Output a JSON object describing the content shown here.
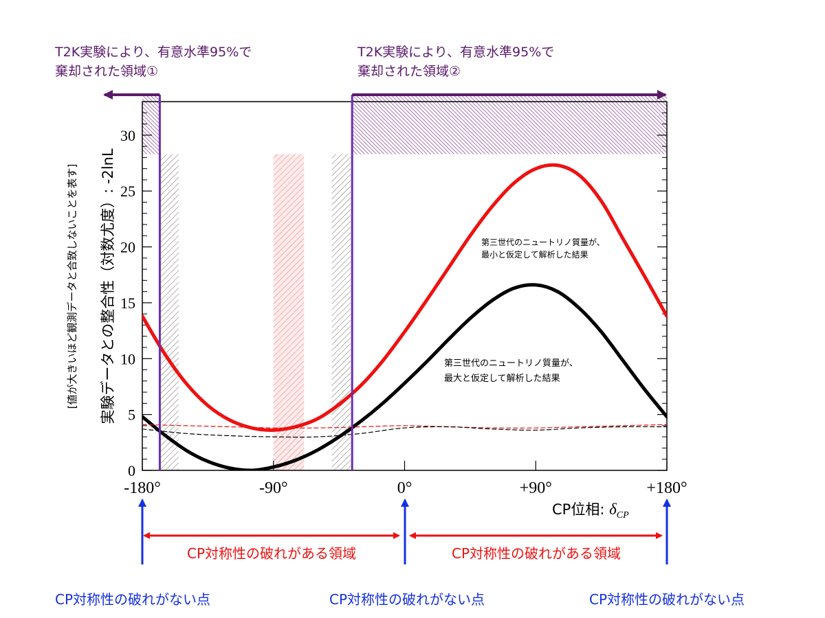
{
  "excluded": {
    "region1": {
      "line1": "T2K実験により、有意水準95%で",
      "line2": "棄却された領域①"
    },
    "region2": {
      "line1": "T2K実験により、有意水準95%で",
      "line2": "棄却された領域②"
    }
  },
  "annotations": {
    "min_mass": {
      "line1": "第三世代のニュートリノ質量が、",
      "line2": "最小と仮定して解析した結果"
    },
    "max_mass": {
      "line1": "第三世代のニュートリノ質量が、",
      "line2": "最大と仮定して解析した結果"
    }
  },
  "regions": {
    "breaking_left": "CP対称性の破れがある領域",
    "breaking_right": "CP対称性の破れがある領域",
    "no_breaking_left": "CP対称性の破れがない点",
    "no_breaking_center": "CP対称性の破れがない点",
    "no_breaking_right": "CP対称性の破れがない点"
  },
  "colors": {
    "red": "#ee1111",
    "black": "#000000",
    "purple": "#5a1a6a",
    "violet_line": "#6a2fb0",
    "blue": "#1530e0",
    "hatch_red": "#f04040",
    "hatch_gray": "#555555"
  },
  "chart_data": {
    "type": "line",
    "title": "",
    "ylabel_main": "実験データとの整合性（対数尤度）: -2lnL",
    "ylabel_sub": "[値が大きいほど観測データと合致しないことを表す]",
    "xlabel_text": "CP位相: ",
    "xlabel_symbol": "δ",
    "xlabel_sub": "CP",
    "xlim": [
      -180,
      180
    ],
    "ylim": [
      0,
      33
    ],
    "x_ticks": [
      {
        "value": -180,
        "label": "-180°"
      },
      {
        "value": -90,
        "label": "-90°"
      },
      {
        "value": 0,
        "label": "0°"
      },
      {
        "value": 90,
        "label": "+90°"
      },
      {
        "value": 180,
        "label": "+180°"
      }
    ],
    "y_ticks": [
      {
        "value": 0,
        "label": "0"
      },
      {
        "value": 5,
        "label": "5"
      },
      {
        "value": 10,
        "label": "10"
      },
      {
        "value": 15,
        "label": "15"
      },
      {
        "value": 20,
        "label": "20"
      },
      {
        "value": 25,
        "label": "25"
      },
      {
        "value": 30,
        "label": "30"
      }
    ],
    "excluded_regions_95cl": [
      [
        -180,
        -168
      ],
      [
        -36,
        180
      ]
    ],
    "hatched_bands": [
      {
        "range": [
          -168,
          -155
        ],
        "color": "gray"
      },
      {
        "range": [
          -90,
          -69
        ],
        "color": "red"
      },
      {
        "range": [
          -50,
          -37
        ],
        "color": "gray"
      }
    ],
    "series": [
      {
        "color": "red",
        "style": "solid",
        "x": [
          -180,
          -165,
          -150,
          -135,
          -120,
          -105,
          -90,
          -75,
          -60,
          -45,
          -30,
          -15,
          0,
          15,
          30,
          45,
          60,
          75,
          90,
          105,
          120,
          135,
          150,
          165,
          180
        ],
        "y": [
          13.8,
          10.5,
          7.8,
          5.8,
          4.5,
          3.8,
          3.6,
          3.9,
          4.6,
          5.9,
          7.6,
          9.8,
          12.4,
          15.2,
          18.1,
          21.0,
          23.6,
          25.7,
          27.0,
          27.3,
          26.4,
          24.1,
          20.7,
          17.3,
          13.8
        ]
      },
      {
        "color": "black",
        "style": "solid",
        "x": [
          -180,
          -165,
          -150,
          -135,
          -120,
          -105,
          -90,
          -75,
          -60,
          -45,
          -30,
          -15,
          0,
          15,
          30,
          45,
          60,
          75,
          90,
          105,
          120,
          135,
          150,
          165,
          180
        ],
        "y": [
          4.8,
          3.2,
          1.8,
          0.8,
          0.2,
          0.0,
          0.3,
          0.9,
          1.8,
          3.0,
          4.4,
          6.0,
          7.8,
          9.7,
          11.7,
          13.6,
          15.2,
          16.3,
          16.6,
          16.0,
          14.5,
          12.4,
          9.8,
          7.2,
          4.8
        ]
      },
      {
        "color": "red",
        "style": "dashed",
        "x": [
          -180,
          -150,
          -120,
          -90,
          -60,
          -30,
          0,
          30,
          60,
          90,
          120,
          150,
          180
        ],
        "y": [
          4.1,
          4.0,
          3.9,
          3.8,
          3.8,
          3.9,
          4.0,
          3.9,
          3.8,
          3.8,
          3.9,
          4.0,
          4.1
        ]
      },
      {
        "color": "black",
        "style": "dashed",
        "x": [
          -180,
          -150,
          -120,
          -90,
          -60,
          -30,
          0,
          30,
          60,
          90,
          120,
          150,
          180
        ],
        "y": [
          3.7,
          3.3,
          3.1,
          3.0,
          3.0,
          3.3,
          3.8,
          3.9,
          3.7,
          3.6,
          3.8,
          3.9,
          3.9
        ]
      }
    ]
  }
}
